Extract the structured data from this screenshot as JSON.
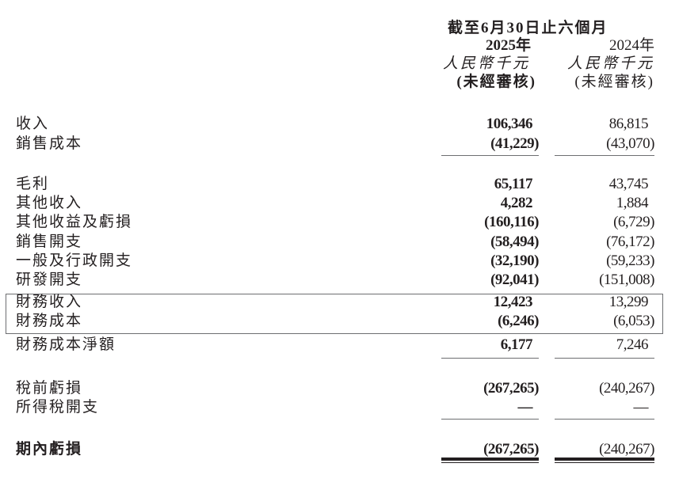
{
  "header": {
    "period": "截至6月30日止六個月",
    "col_2025": {
      "year": "2025年",
      "currency": "人民幣千元",
      "audit": "(未經審核)"
    },
    "col_2024": {
      "year": "2024年",
      "currency": "人民幣千元",
      "audit": "(未經審核)"
    }
  },
  "rows": [
    {
      "label": "收入",
      "v2025": "106,346",
      "v2024": "86,815"
    },
    {
      "label": "銷售成本",
      "v2025": "(41,229)",
      "v2024": "(43,070)"
    },
    {
      "label": "毛利",
      "v2025": "65,117",
      "v2024": "43,745"
    },
    {
      "label": "其他收入",
      "v2025": "4,282",
      "v2024": "1,884"
    },
    {
      "label": "其他收益及虧損",
      "v2025": "(160,116)",
      "v2024": "(6,729)"
    },
    {
      "label": "銷售開支",
      "v2025": "(58,494)",
      "v2024": "(76,172)"
    },
    {
      "label": "一般及行政開支",
      "v2025": "(32,190)",
      "v2024": "(59,233)"
    },
    {
      "label": "研發開支",
      "v2025": "(92,041)",
      "v2024": "(151,008)"
    },
    {
      "label": "財務收入",
      "v2025": "12,423",
      "v2024": "13,299"
    },
    {
      "label": "財務成本",
      "v2025": "(6,246)",
      "v2024": "(6,053)"
    },
    {
      "label": "財務成本淨額",
      "v2025": "6,177",
      "v2024": "7,246"
    },
    {
      "label": "稅前虧損",
      "v2025": "(267,265)",
      "v2024": "(240,267)"
    },
    {
      "label": "所得稅開支",
      "v2025": "—",
      "v2024": "—"
    },
    {
      "label": "期內虧損",
      "v2025": "(267,265)",
      "v2024": "(240,267)",
      "bold_label": true
    }
  ]
}
